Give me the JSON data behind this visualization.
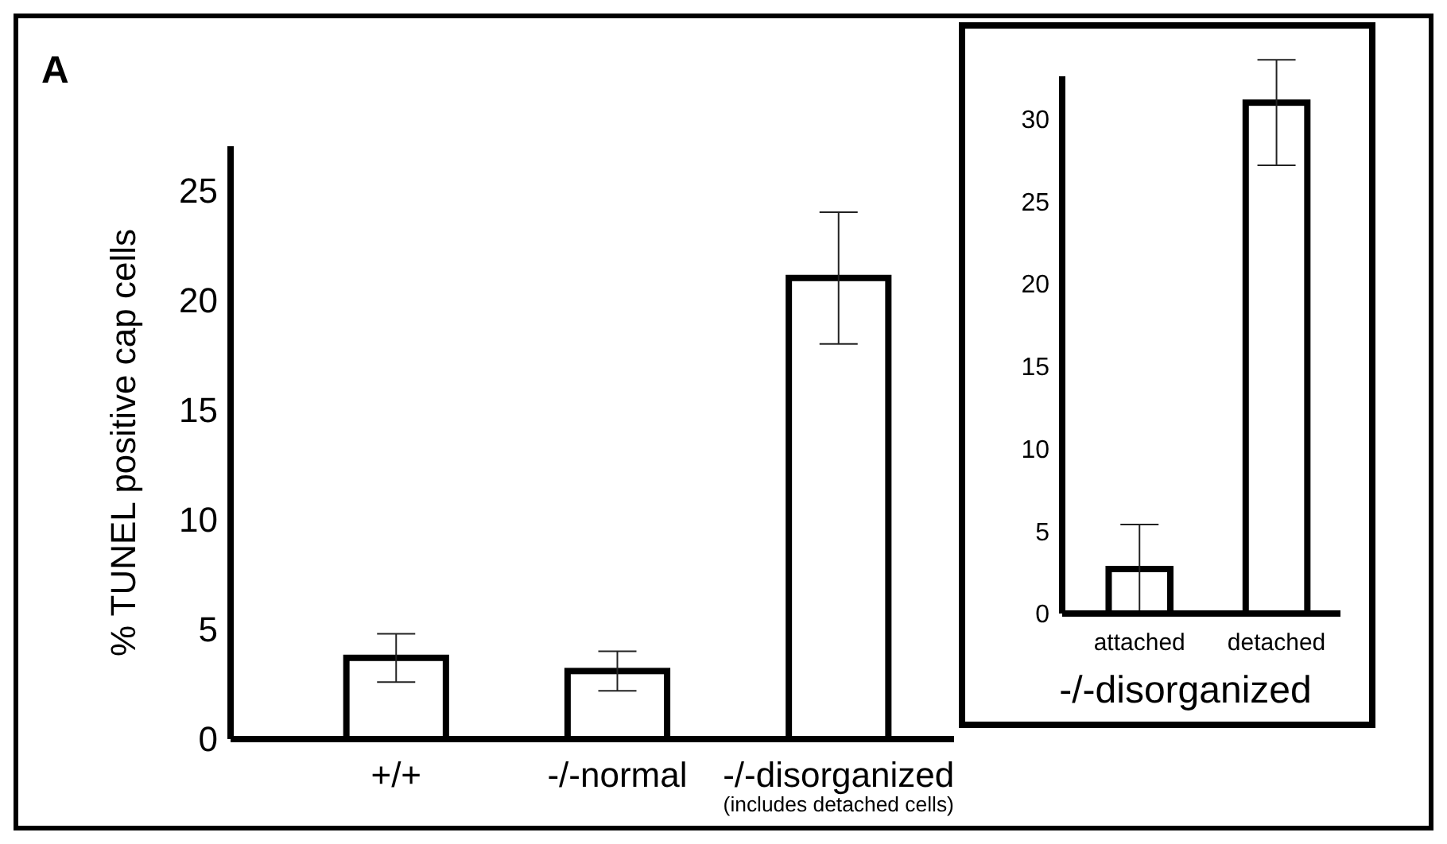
{
  "chart_data": [
    {
      "type": "bar",
      "ylabel": "% TUNEL positive cap cells",
      "categories": [
        "+/+",
        "-/-normal",
        "-/-disorganized\n(includes detached cells)"
      ],
      "values": [
        3.7,
        3.1,
        21
      ],
      "errors": [
        1.1,
        0.9,
        3
      ],
      "color": "#ffffff",
      "ylim": [
        0,
        27
      ],
      "yticks": [
        0,
        5,
        10,
        15,
        20,
        25
      ],
      "annotations": [
        "A"
      ]
    },
    {
      "type": "bar",
      "xlabel": "-/-disorganized",
      "categories": [
        "attached",
        "detached"
      ],
      "values": [
        2.7,
        31
      ],
      "errors": [
        2.7,
        [
          27.2,
          33.6
        ]
      ],
      "color": "#ffffff",
      "ylim": [
        0,
        32.6
      ],
      "yticks": [
        0,
        5,
        10,
        15,
        20,
        25,
        30
      ]
    }
  ]
}
